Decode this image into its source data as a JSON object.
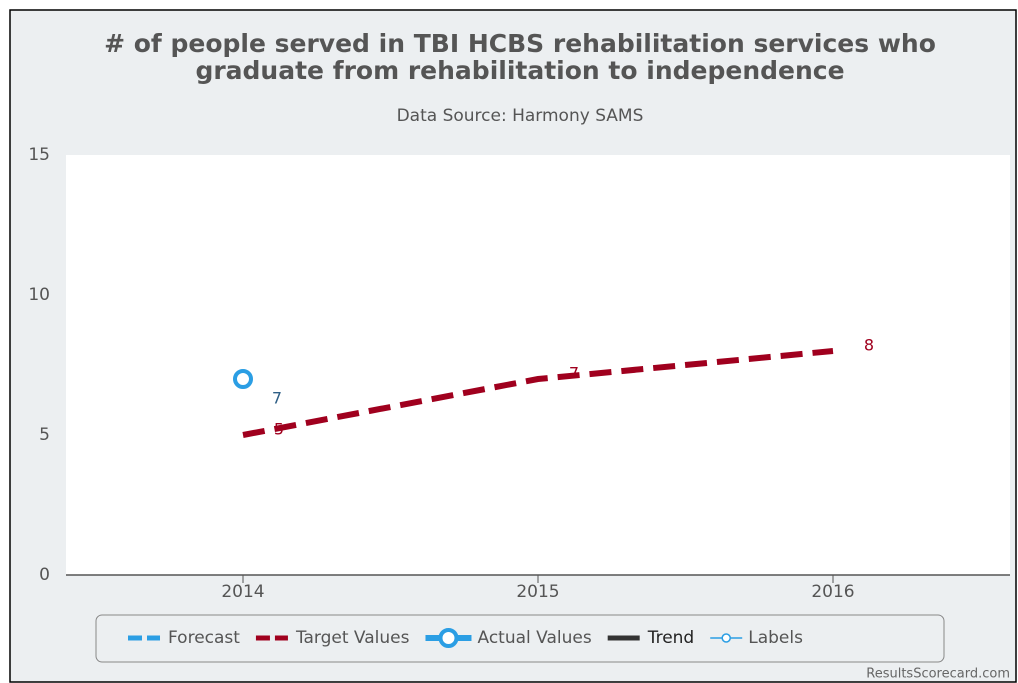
{
  "chart_data": {
    "type": "line",
    "title": [
      "# of people served in TBI HCBS rehabilitation services who",
      "graduate from rehabilitation to independence"
    ],
    "subtitle": "Data Source: Harmony SAMS",
    "x": [
      2014,
      2015,
      2016
    ],
    "xlim": [
      2013.4,
      2016.6
    ],
    "xticks": [
      2014,
      2015,
      2016
    ],
    "ylim": [
      0,
      15
    ],
    "yticks": [
      0,
      5,
      10,
      15
    ],
    "series": [
      {
        "name": "Forecast",
        "color": "#2b9ee4",
        "style": "dashed-light",
        "values": [
          null,
          null,
          null
        ]
      },
      {
        "name": "Target Values",
        "color": "#a0001e",
        "style": "dashed",
        "values": [
          5,
          7,
          8
        ]
      },
      {
        "name": "Actual Values",
        "color": "#2b9ee4",
        "style": "marker",
        "label_color": "#2f5f86",
        "values": [
          7,
          null,
          null
        ]
      },
      {
        "name": "Trend",
        "color": "#333333",
        "style": "solid",
        "values": [
          null,
          null,
          null
        ]
      },
      {
        "name": "Labels",
        "color": "#2b9ee4",
        "style": "label-icon",
        "values": [
          null,
          null,
          null
        ]
      }
    ],
    "credit": "ResultsScorecard.com"
  }
}
